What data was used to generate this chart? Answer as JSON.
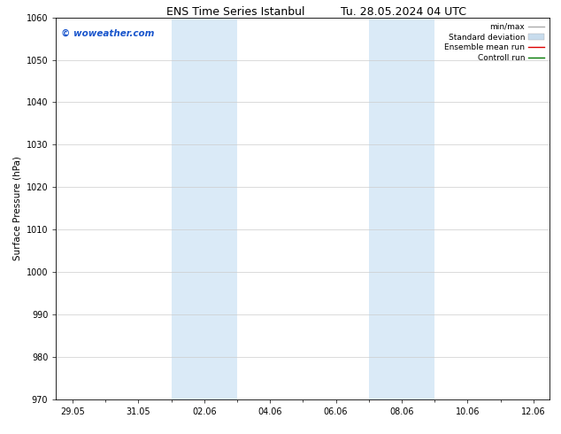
{
  "title_left": "ENS Time Series Istanbul",
  "title_right": "Tu. 28.05.2024 04 UTC",
  "ylabel": "Surface Pressure (hPa)",
  "ylim": [
    970,
    1060
  ],
  "yticks": [
    970,
    980,
    990,
    1000,
    1010,
    1020,
    1030,
    1040,
    1050,
    1060
  ],
  "xtick_labels": [
    "29.05",
    "31.05",
    "02.06",
    "04.06",
    "06.06",
    "08.06",
    "10.06",
    "12.06"
  ],
  "xtick_positions": [
    0,
    2,
    4,
    6,
    8,
    10,
    12,
    14
  ],
  "xlim": [
    -0.5,
    14.5
  ],
  "shaded_bands": [
    {
      "x_start": 3.0,
      "x_end": 5.0,
      "color": "#daeaf7"
    },
    {
      "x_start": 9.0,
      "x_end": 11.0,
      "color": "#daeaf7"
    }
  ],
  "watermark_text": "© woweather.com",
  "watermark_color": "#1a56cc",
  "watermark_fontsize": 7.5,
  "legend_items": [
    {
      "label": "min/max",
      "color": "#aaaaaa",
      "lw": 1.0
    },
    {
      "label": "Standard deviation",
      "color": "#c8dced",
      "lw": 5
    },
    {
      "label": "Ensemble mean run",
      "color": "#dd0000",
      "lw": 1.0
    },
    {
      "label": "Controll run",
      "color": "#007700",
      "lw": 1.0
    }
  ],
  "background_color": "#ffffff",
  "grid_color": "#cccccc",
  "title_fontsize": 9,
  "axis_label_fontsize": 7.5,
  "tick_fontsize": 7,
  "legend_fontsize": 6.5
}
